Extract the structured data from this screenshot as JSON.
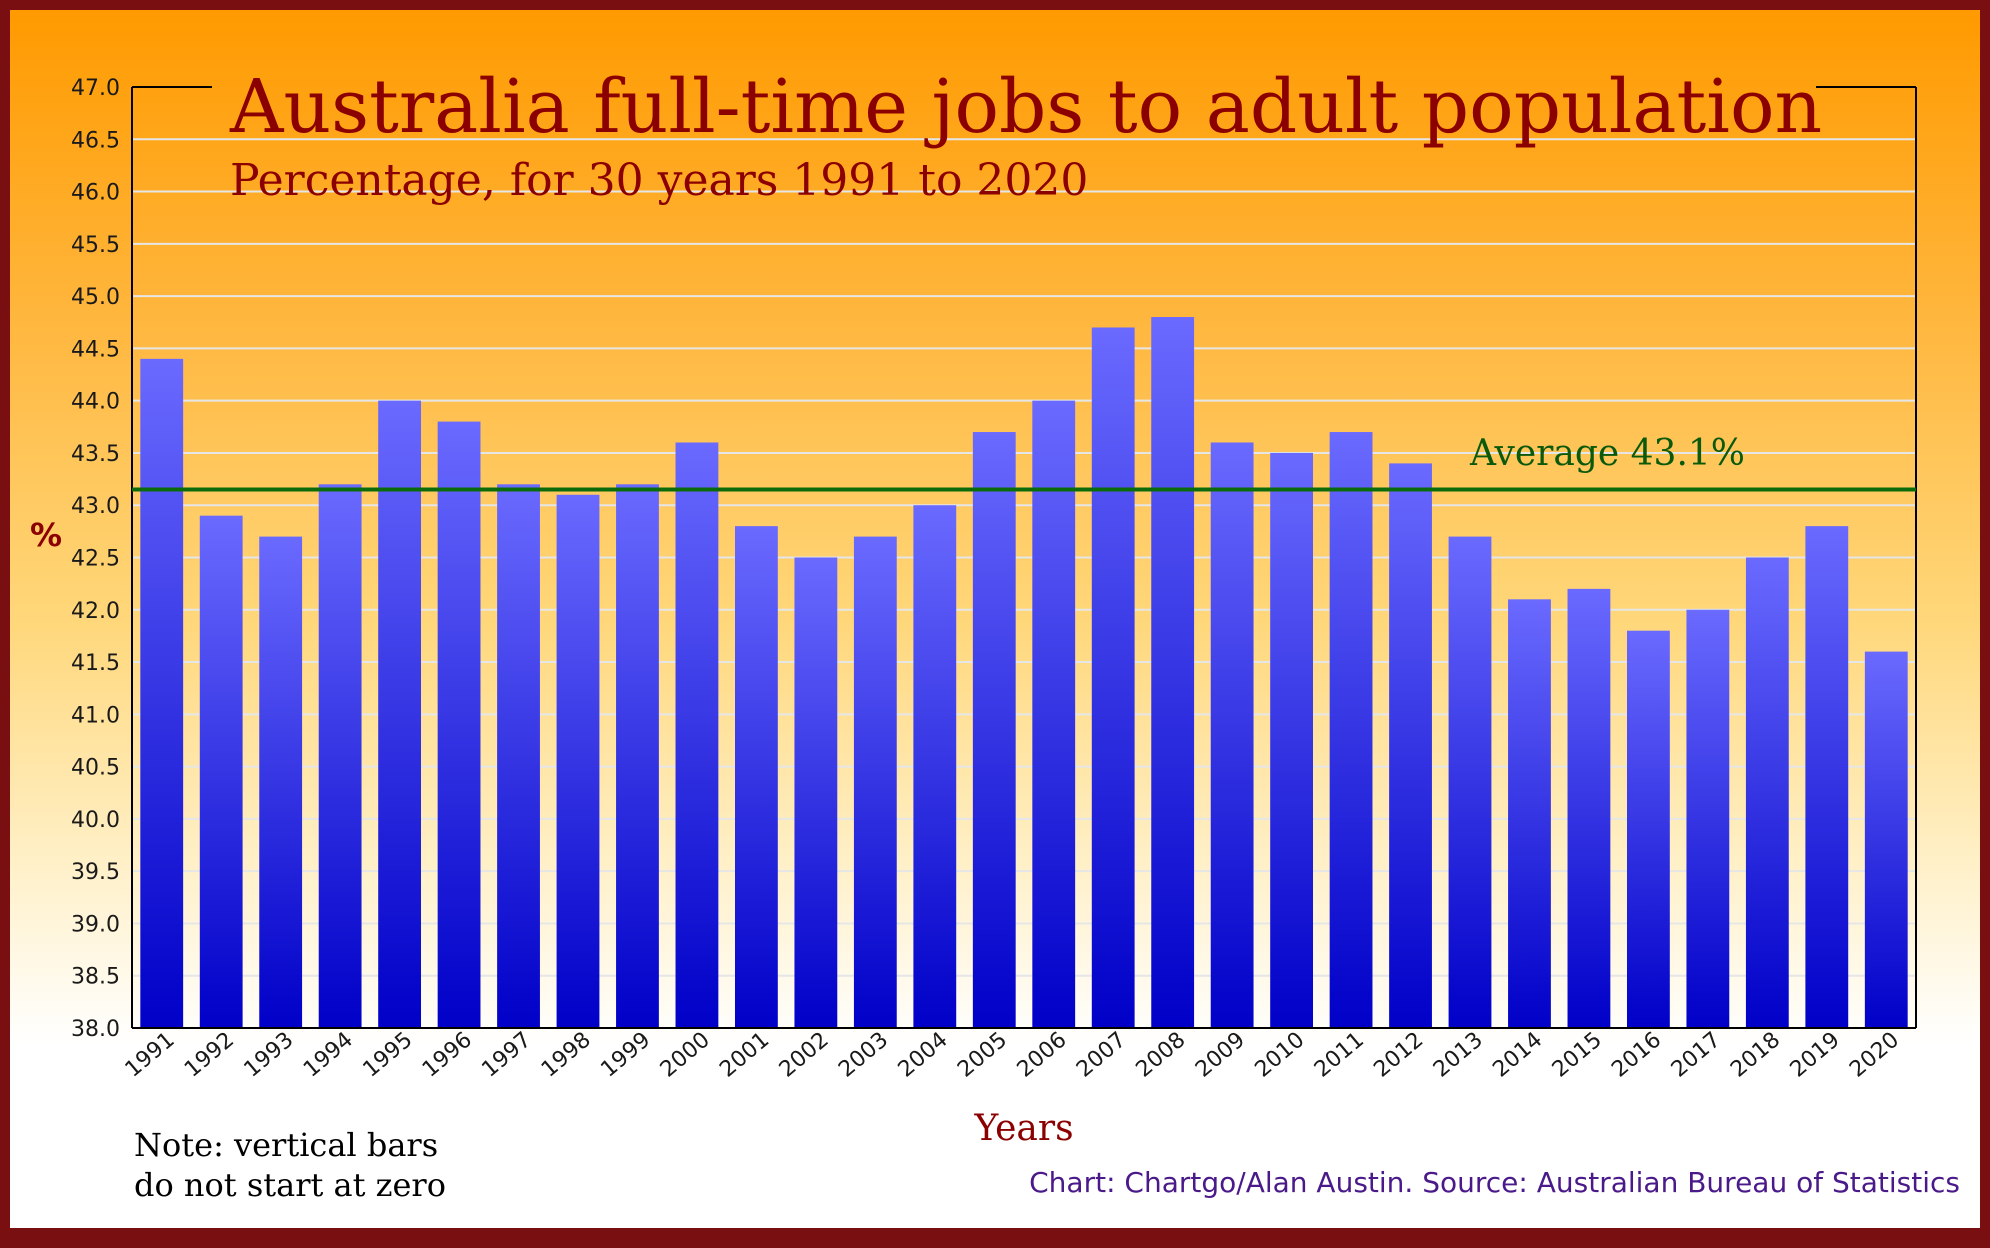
{
  "chart_data": {
    "type": "bar",
    "title": "Australia full-time jobs to adult population",
    "subtitle": "Percentage, for 30 years 1991 to 2020",
    "ylabel": "%",
    "xlabel": "Years",
    "ylim": [
      38.0,
      47.0
    ],
    "y_ticks": [
      "38.0",
      "38.5",
      "39.0",
      "39.5",
      "40.0",
      "40.5",
      "41.0",
      "41.5",
      "42.0",
      "42.5",
      "43.0",
      "43.5",
      "44.0",
      "44.5",
      "45.0",
      "45.5",
      "46.0",
      "46.5",
      "47.0"
    ],
    "categories": [
      "1991",
      "1992",
      "1993",
      "1994",
      "1995",
      "1996",
      "1997",
      "1998",
      "1999",
      "2000",
      "2001",
      "2002",
      "2003",
      "2004",
      "2005",
      "2006",
      "2007",
      "2008",
      "2009",
      "2010",
      "2011",
      "2012",
      "2013",
      "2014",
      "2015",
      "2016",
      "2017",
      "2018",
      "2019",
      "2020"
    ],
    "values": [
      44.4,
      42.9,
      42.7,
      43.2,
      44.0,
      43.8,
      43.2,
      43.1,
      43.2,
      43.6,
      42.8,
      42.5,
      42.7,
      43.0,
      43.7,
      44.0,
      44.7,
      44.8,
      43.6,
      43.5,
      43.7,
      43.4,
      42.7,
      42.1,
      42.2,
      41.8,
      42.0,
      42.5,
      42.8,
      41.6
    ],
    "average": {
      "value": 43.15,
      "label": "Average 43.1%"
    },
    "grid": true,
    "colors": {
      "bar_top": "#6a6aff",
      "bar_bottom": "#0000c8",
      "average_line": "#0b6b0b",
      "title": "#8b0000"
    }
  },
  "notes": {
    "note_line1": "Note: vertical bars",
    "note_line2": "do not start at zero",
    "source": "Chart: Chartgo/Alan Austin. Source: Australian Bureau of Statistics"
  }
}
